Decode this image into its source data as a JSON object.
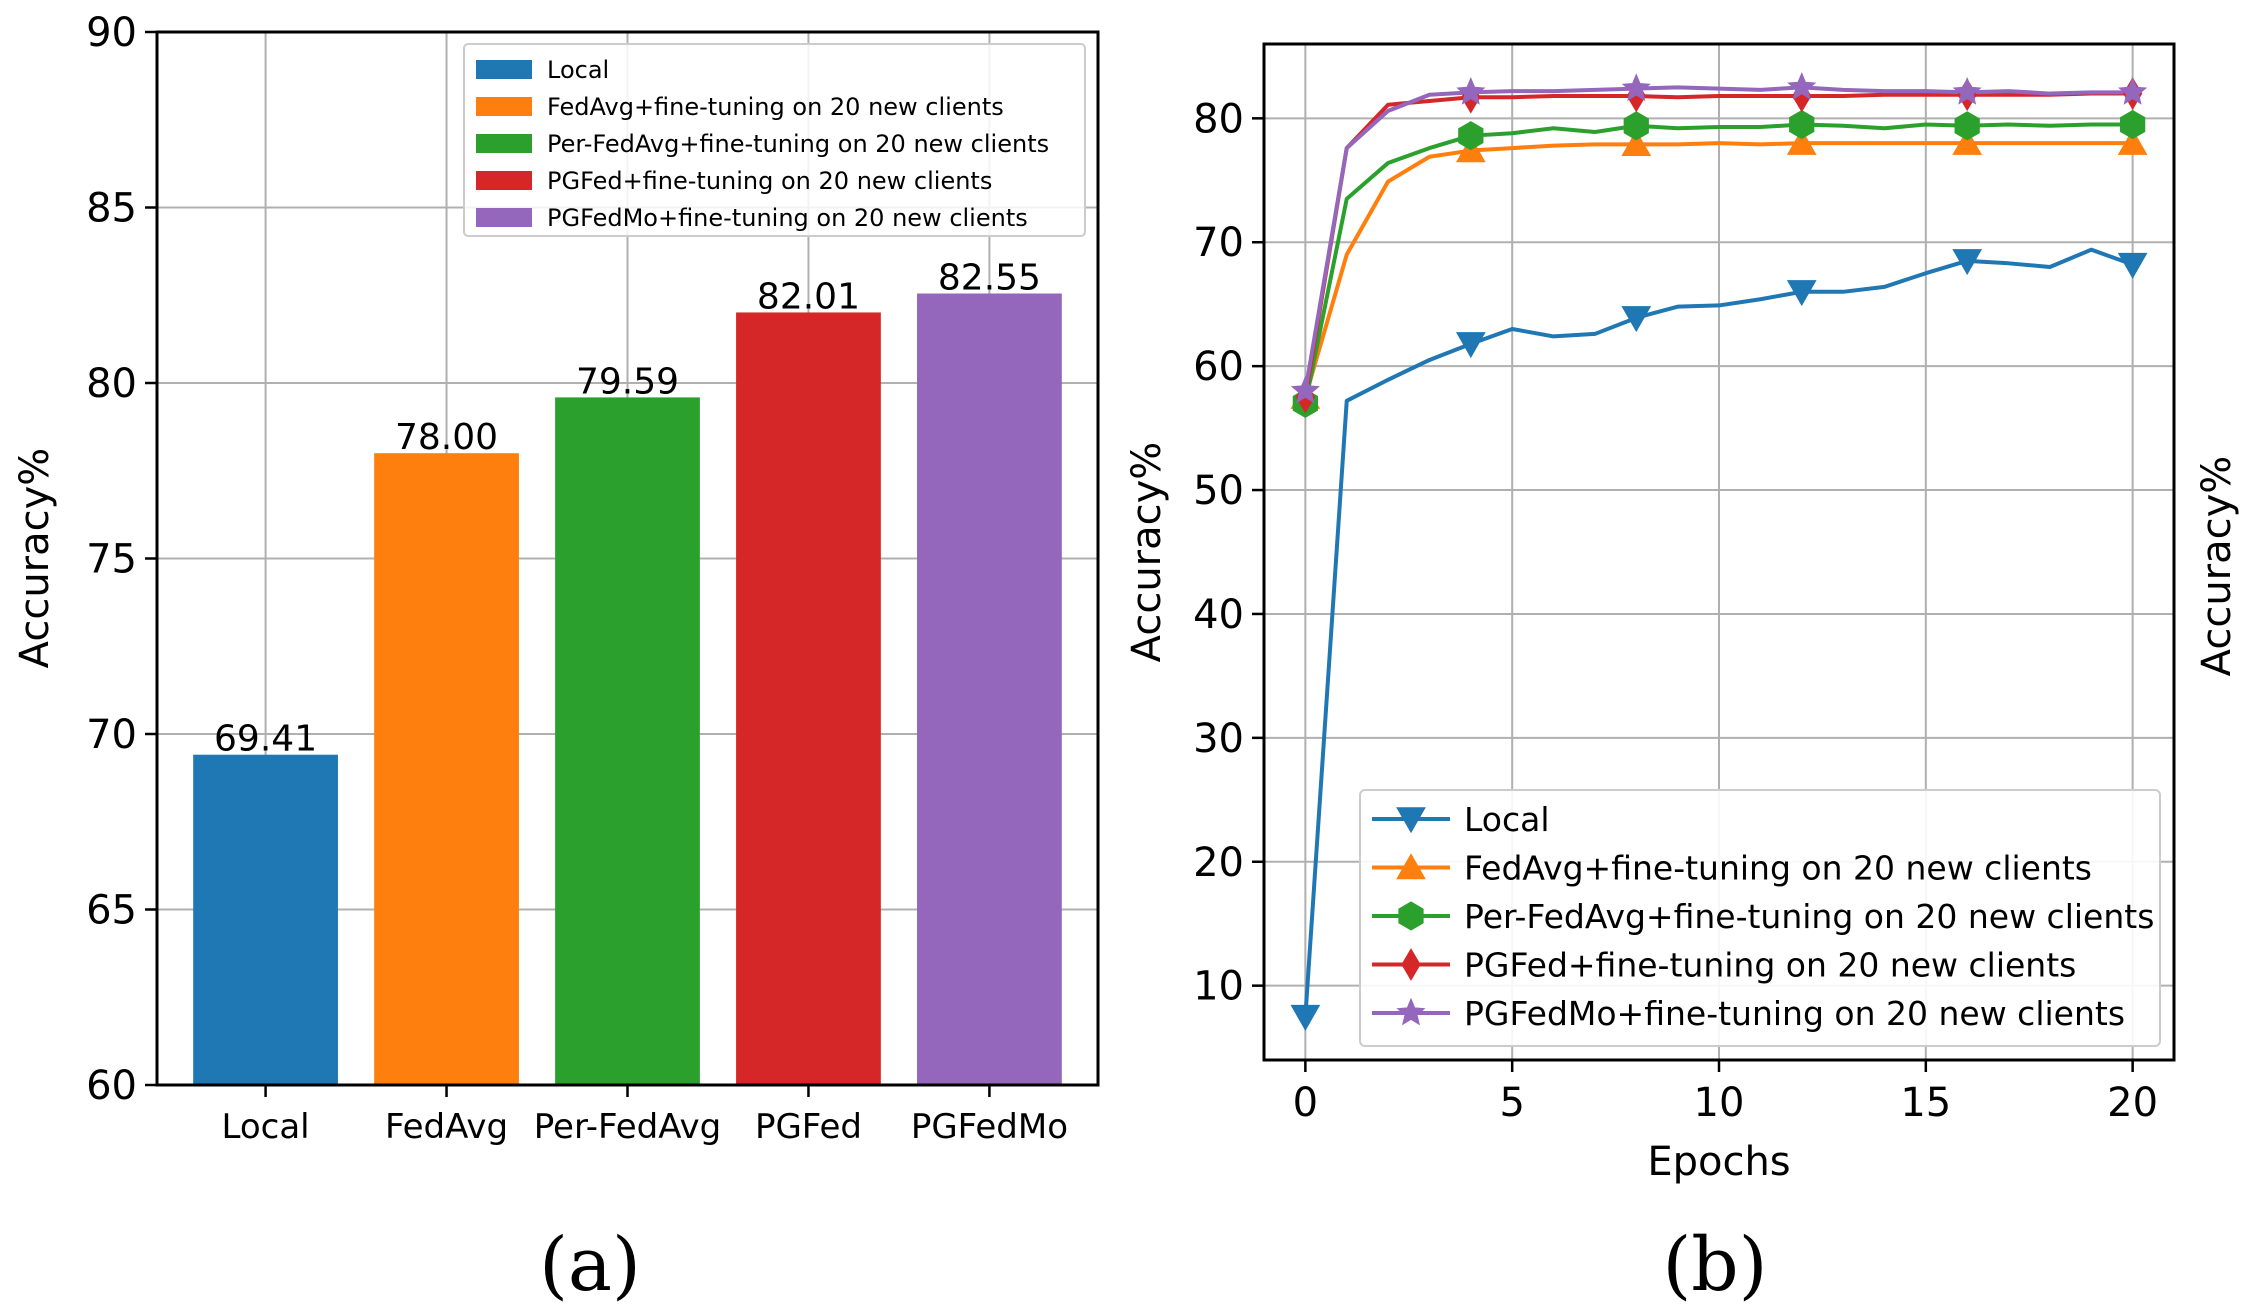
{
  "chart_data": [
    {
      "type": "bar",
      "panel_label": "(a)",
      "title": "",
      "xlabel": "",
      "ylabel": "Accuracy%",
      "ylim": [
        60,
        90
      ],
      "yticks": [
        60,
        65,
        70,
        75,
        80,
        85,
        90
      ],
      "categories": [
        "Local",
        "FedAvg",
        "Per-FedAvg",
        "PGFed",
        "PGFedMo"
      ],
      "values": [
        69.41,
        78.0,
        79.59,
        82.01,
        82.55
      ],
      "value_labels": [
        "69.41",
        "78.00",
        "79.59",
        "82.01",
        "82.55"
      ],
      "colors": [
        "#1f77b4",
        "#ff7f0e",
        "#2ca02c",
        "#d62728",
        "#9467bd"
      ],
      "grid": true,
      "legend_position": "top-right",
      "legend": [
        "Local",
        "FedAvg+fine-tuning on 20 new clients",
        "Per-FedAvg+fine-tuning on 20 new clients",
        "PGFed+fine-tuning on 20 new clients",
        "PGFedMo+fine-tuning on 20 new clients"
      ]
    },
    {
      "type": "line",
      "panel_label": "(b)",
      "title": "",
      "xlabel": "Epochs",
      "ylabel": "Accuracy%",
      "right_ylabel": "Accuracy%",
      "xlim": [
        -1,
        21
      ],
      "ylim": [
        4,
        86
      ],
      "xticks": [
        0,
        5,
        10,
        15,
        20
      ],
      "yticks": [
        10,
        20,
        30,
        40,
        50,
        60,
        70,
        80
      ],
      "grid": true,
      "legend_position": "lower-right",
      "x": [
        0,
        1,
        2,
        3,
        4,
        5,
        6,
        7,
        8,
        9,
        10,
        11,
        12,
        13,
        14,
        15,
        16,
        17,
        18,
        19,
        20
      ],
      "series": [
        {
          "name": "Local",
          "color": "#1f77b4",
          "marker": "triangle-down",
          "values": [
            7.5,
            57.2,
            58.9,
            60.5,
            61.8,
            63.0,
            62.4,
            62.6,
            63.9,
            64.8,
            64.9,
            65.4,
            66.0,
            66.0,
            66.4,
            67.5,
            68.5,
            68.3,
            68.0,
            69.4,
            68.2
          ]
        },
        {
          "name": "FedAvg+fine-tuning on 20 new clients",
          "color": "#ff7f0e",
          "marker": "triangle-up",
          "values": [
            57.5,
            69.0,
            74.9,
            76.9,
            77.4,
            77.6,
            77.8,
            77.9,
            77.9,
            77.9,
            78.0,
            77.9,
            78.0,
            78.0,
            78.0,
            78.0,
            78.0,
            78.0,
            78.0,
            78.0,
            78.0
          ]
        },
        {
          "name": "Per-FedAvg+fine-tuning on 20 new clients",
          "color": "#2ca02c",
          "marker": "hexagon",
          "values": [
            57.0,
            73.5,
            76.4,
            77.6,
            78.6,
            78.8,
            79.2,
            78.9,
            79.4,
            79.2,
            79.3,
            79.3,
            79.5,
            79.4,
            79.2,
            79.5,
            79.4,
            79.5,
            79.4,
            79.5,
            79.5
          ]
        },
        {
          "name": "PGFed+fine-tuning on 20 new clients",
          "color": "#d62728",
          "marker": "diamond",
          "values": [
            57.5,
            77.6,
            81.1,
            81.4,
            81.7,
            81.7,
            81.8,
            81.8,
            81.8,
            81.7,
            81.8,
            81.8,
            81.8,
            81.8,
            81.9,
            81.9,
            81.9,
            81.9,
            81.9,
            82.0,
            82.0
          ]
        },
        {
          "name": "PGFedMo+fine-tuning on 20 new clients",
          "color": "#9467bd",
          "marker": "star",
          "values": [
            58.0,
            77.6,
            80.6,
            81.9,
            82.1,
            82.2,
            82.2,
            82.3,
            82.4,
            82.5,
            82.4,
            82.3,
            82.5,
            82.3,
            82.2,
            82.2,
            82.1,
            82.2,
            82.0,
            82.1,
            82.1
          ]
        }
      ],
      "marker_every": [
        0,
        4,
        8,
        12,
        16,
        20
      ]
    }
  ]
}
